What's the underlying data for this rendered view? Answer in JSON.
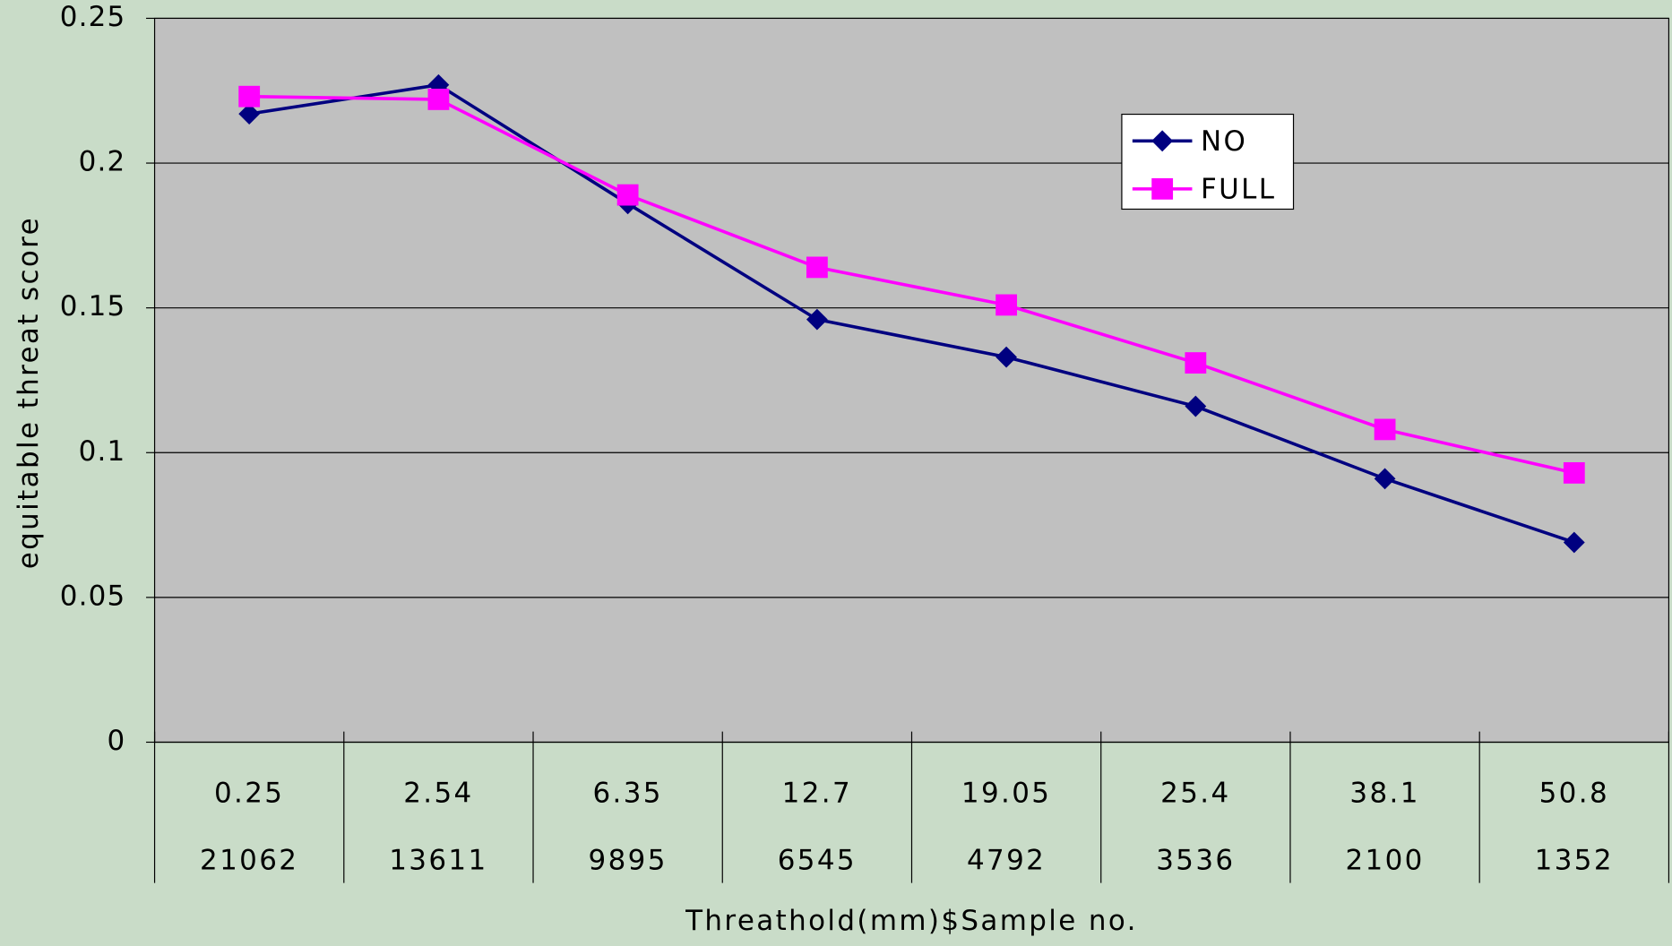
{
  "chart_data": {
    "type": "line",
    "x_label": "Threathold(mm)$Sample no.",
    "y_label": "equitable threat score",
    "categories": [
      "0.25",
      "2.54",
      "6.35",
      "12.7",
      "19.05",
      "25.4",
      "38.1",
      "50.8"
    ],
    "sample_counts": [
      "21062",
      "13611",
      "9895",
      "6545",
      "4792",
      "3536",
      "2100",
      "1352"
    ],
    "series": [
      {
        "name": "NO",
        "color": "#000080",
        "marker": "diamond",
        "values": [
          0.217,
          0.227,
          0.186,
          0.146,
          0.133,
          0.116,
          0.091,
          0.069
        ]
      },
      {
        "name": "FULL",
        "color": "#ff00ff",
        "marker": "square",
        "values": [
          0.223,
          0.222,
          0.189,
          0.164,
          0.151,
          0.131,
          0.108,
          0.093
        ]
      }
    ],
    "ylim": [
      0,
      0.25
    ],
    "yticks": [
      0,
      0.05,
      0.1,
      0.15,
      0.2,
      0.25
    ],
    "grid": true,
    "legend": "upper right"
  }
}
